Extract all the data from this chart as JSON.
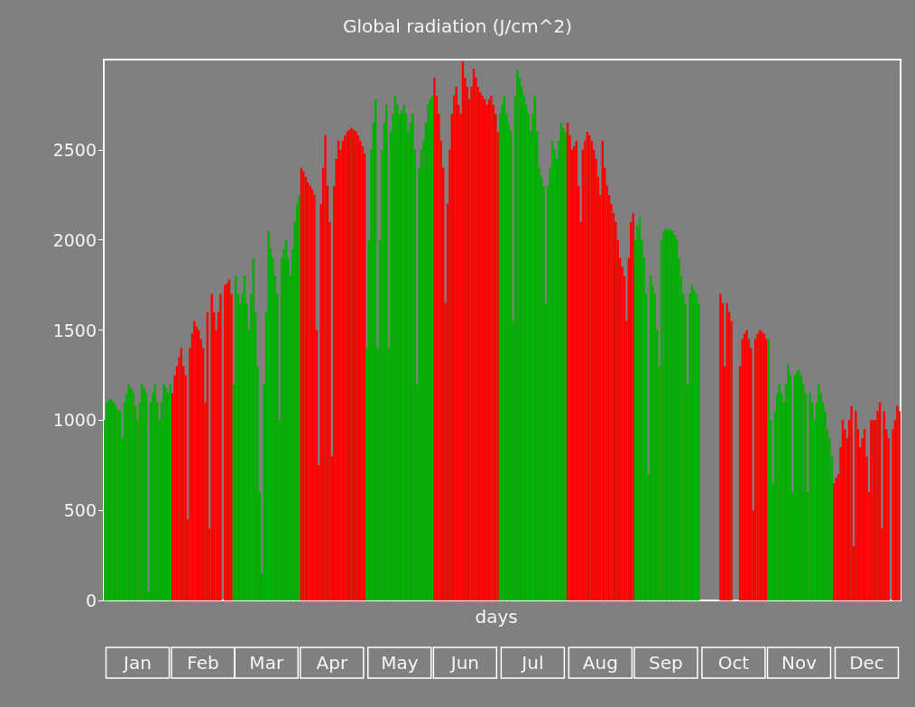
{
  "chart_data": {
    "type": "bar",
    "title": "Global radiation (J/cm^2)",
    "xlabel": "days",
    "categories": [
      null,
      null,
      null,
      null,
      null,
      null,
      null,
      null,
      null,
      null,
      null,
      null,
      null,
      null,
      null,
      "Jan",
      null,
      null,
      null,
      null,
      null,
      null,
      null,
      null,
      null,
      null,
      null,
      null,
      null,
      null,
      null,
      null,
      null,
      null,
      null,
      null,
      null,
      null,
      null,
      null,
      null,
      null,
      null,
      null,
      null,
      "Feb",
      null,
      null,
      null,
      null,
      null,
      null,
      null,
      null,
      null,
      null,
      null,
      null,
      null,
      null,
      null,
      null,
      null,
      null,
      null,
      null,
      null,
      null,
      null,
      null,
      null,
      null,
      null,
      null,
      "Mar",
      null,
      null,
      null,
      null,
      null,
      null,
      null,
      null,
      null,
      null,
      null,
      null,
      null,
      null,
      null,
      null,
      null,
      null,
      null,
      null,
      null,
      null,
      null,
      null,
      null,
      null,
      null,
      null,
      null,
      "Apr",
      null,
      null,
      null,
      null,
      null,
      null,
      null,
      null,
      null,
      null,
      null,
      null,
      null,
      null,
      null,
      null,
      null,
      null,
      null,
      null,
      null,
      null,
      null,
      null,
      null,
      null,
      null,
      null,
      null,
      null,
      "May",
      null,
      null,
      null,
      null,
      null,
      null,
      null,
      null,
      null,
      null,
      null,
      null,
      null,
      null,
      null,
      null,
      null,
      null,
      null,
      null,
      null,
      null,
      null,
      null,
      null,
      null,
      null,
      null,
      null,
      "Jun",
      null,
      null,
      null,
      null,
      null,
      null,
      null,
      null,
      null,
      null,
      null,
      null,
      null,
      null,
      null,
      null,
      null,
      null,
      null,
      null,
      null,
      null,
      null,
      null,
      null,
      null,
      null,
      null,
      null,
      null,
      "Jul",
      null,
      null,
      null,
      null,
      null,
      null,
      null,
      null,
      null,
      null,
      null,
      null,
      null,
      null,
      null,
      null,
      null,
      null,
      null,
      null,
      null,
      null,
      null,
      null,
      null,
      null,
      null,
      null,
      null,
      null,
      "Aug",
      null,
      null,
      null,
      null,
      null,
      null,
      null,
      null,
      null,
      null,
      null,
      null,
      null,
      null,
      null,
      null,
      null,
      null,
      null,
      null,
      null,
      null,
      null,
      null,
      null,
      null,
      null,
      null,
      null,
      "Sep",
      null,
      null,
      null,
      null,
      null,
      null,
      null,
      null,
      null,
      null,
      null,
      null,
      null,
      null,
      null,
      null,
      null,
      null,
      null,
      null,
      null,
      null,
      null,
      null,
      null,
      null,
      null,
      null,
      null,
      null,
      "Oct",
      null,
      null,
      null,
      null,
      null,
      null,
      null,
      null,
      null,
      null,
      null,
      null,
      null,
      null,
      null,
      null,
      null,
      null,
      null,
      null,
      null,
      null,
      null,
      null,
      null,
      null,
      null,
      null,
      null,
      "Nov",
      null,
      null,
      null,
      null,
      null,
      null,
      null,
      null,
      null,
      null,
      null,
      null,
      null,
      null,
      null,
      null,
      null,
      null,
      null,
      null,
      null,
      null,
      null,
      null,
      null,
      null,
      null,
      null,
      null,
      null,
      "Dec",
      null,
      null,
      null,
      null,
      null,
      null,
      null,
      null,
      null,
      null,
      null,
      null,
      null,
      null,
      null
    ],
    "values": [
      1000,
      1100,
      1110,
      1120,
      1100,
      1080,
      1060,
      1050,
      900,
      1100,
      1150,
      1200,
      1180,
      1150,
      1080,
      1000,
      1100,
      1200,
      1180,
      1150,
      50,
      1100,
      1150,
      1200,
      1100,
      1000,
      1100,
      1200,
      1180,
      1150,
      1200,
      1150,
      1250,
      1300,
      1350,
      1400,
      1300,
      1250,
      450,
      1400,
      1480,
      1550,
      1520,
      1500,
      1450,
      1400,
      1100,
      1600,
      400,
      1700,
      1600,
      1500,
      1600,
      1700,
      0,
      1750,
      1760,
      1780,
      1700,
      1200,
      1800,
      1700,
      1650,
      1700,
      1800,
      1650,
      1500,
      1700,
      1900,
      1600,
      1300,
      600,
      150,
      1200,
      1600,
      2050,
      1950,
      1900,
      1800,
      1700,
      1000,
      1900,
      1950,
      2000,
      1900,
      1800,
      1950,
      2100,
      2200,
      2250,
      2400,
      2380,
      2350,
      2320,
      2300,
      2280,
      2250,
      1500,
      750,
      2200,
      2400,
      2580,
      2300,
      2100,
      800,
      2300,
      2450,
      2550,
      2500,
      2550,
      2580,
      2600,
      2610,
      2620,
      2610,
      2600,
      2580,
      2550,
      2520,
      2480,
      1400,
      2000,
      2500,
      2650,
      2780,
      1400,
      2000,
      2500,
      2650,
      2750,
      1400,
      2600,
      2700,
      2800,
      2750,
      2700,
      2720,
      2750,
      2700,
      2600,
      2650,
      2700,
      2500,
      1200,
      2400,
      2500,
      2550,
      2650,
      2750,
      2780,
      2800,
      2900,
      2800,
      2700,
      2550,
      2400,
      1650,
      2200,
      2500,
      2700,
      2800,
      2850,
      2750,
      2700,
      2990,
      2900,
      2850,
      2780,
      2850,
      2950,
      2900,
      2850,
      2820,
      2800,
      2780,
      2750,
      2780,
      2800,
      2750,
      2700,
      2600,
      2700,
      2750,
      2800,
      2700,
      2650,
      2600,
      1550,
      2800,
      2940,
      2900,
      2850,
      2800,
      2750,
      2700,
      2600,
      2700,
      2800,
      2600,
      2400,
      2350,
      2300,
      1650,
      2300,
      2400,
      2550,
      2500,
      2450,
      2550,
      2650,
      2620,
      2600,
      2650,
      2580,
      2500,
      2520,
      2550,
      2300,
      2100,
      2500,
      2550,
      2600,
      2580,
      2550,
      2500,
      2450,
      2350,
      2250,
      2550,
      2400,
      2300,
      2250,
      2200,
      2150,
      2100,
      2000,
      1900,
      1850,
      1800,
      1550,
      1900,
      2100,
      2150,
      2000,
      2080,
      2130,
      2000,
      1900,
      1700,
      700,
      1800,
      1750,
      1700,
      1500,
      1300,
      2000,
      2050,
      2060,
      2060,
      2060,
      2050,
      2030,
      2000,
      1900,
      1800,
      1700,
      1650,
      1200,
      1700,
      1750,
      1720,
      1700,
      1650,
      0,
      0,
      0,
      0,
      0,
      0,
      0,
      0,
      0,
      1700,
      1650,
      1300,
      1650,
      1600,
      1550,
      0,
      0,
      0,
      1300,
      1450,
      1480,
      1500,
      1450,
      1400,
      500,
      1450,
      1480,
      1500,
      1490,
      1480,
      1450,
      1450,
      1000,
      650,
      1050,
      1150,
      1200,
      1150,
      1100,
      1200,
      1310,
      1250,
      600,
      1250,
      1270,
      1280,
      1250,
      1200,
      1150,
      600,
      1150,
      1100,
      1000,
      1100,
      1200,
      1150,
      1100,
      1050,
      950,
      900,
      800,
      650,
      680,
      700,
      850,
      1000,
      950,
      900,
      1000,
      1080,
      300,
      1050,
      950,
      850,
      900,
      950,
      800,
      600,
      1000,
      1000,
      1000,
      1050,
      1100,
      400,
      1050,
      950,
      900,
      0,
      950,
      1000,
      1080,
      1050
    ],
    "colors": [
      "#00b000",
      "#00b000",
      "#00b000",
      "#00b000",
      "#00b000",
      "#00b000",
      "#00b000",
      "#00b000",
      "#00b000",
      "#00b000",
      "#00b000",
      "#00b000",
      "#00b000",
      "#00b000",
      "#00b000",
      "#00b000",
      "#00b000",
      "#00b000",
      "#00b000",
      "#00b000",
      "#00b000",
      "#00b000",
      "#00b000",
      "#00b000",
      "#00b000",
      "#00b000",
      "#00b000",
      "#00b000",
      "#00b000",
      "#00b000",
      "#00b000",
      "#ff0000",
      "#ff0000",
      "#ff0000",
      "#ff0000",
      "#ff0000",
      "#ff0000",
      "#ff0000",
      "#ff0000",
      "#ff0000",
      "#ff0000",
      "#ff0000",
      "#ff0000",
      "#ff0000",
      "#ff0000",
      "#ff0000",
      "#ff0000",
      "#ff0000",
      "#ff0000",
      "#ff0000",
      "#ff0000",
      "#ff0000",
      "#ff0000",
      "#ff0000",
      "#ff0000",
      "#ff0000",
      "#ff0000",
      "#ff0000",
      "#ff0000",
      "#00b000",
      "#00b000",
      "#00b000",
      "#00b000",
      "#00b000",
      "#00b000",
      "#00b000",
      "#00b000",
      "#00b000",
      "#00b000",
      "#00b000",
      "#00b000",
      "#00b000",
      "#00b000",
      "#00b000",
      "#00b000",
      "#00b000",
      "#00b000",
      "#00b000",
      "#00b000",
      "#00b000",
      "#00b000",
      "#00b000",
      "#00b000",
      "#00b000",
      "#00b000",
      "#00b000",
      "#00b000",
      "#00b000",
      "#00b000",
      "#00b000",
      "#ff0000",
      "#ff0000",
      "#ff0000",
      "#ff0000",
      "#ff0000",
      "#ff0000",
      "#ff0000",
      "#ff0000",
      "#ff0000",
      "#ff0000",
      "#ff0000",
      "#ff0000",
      "#ff0000",
      "#ff0000",
      "#ff0000",
      "#ff0000",
      "#ff0000",
      "#ff0000",
      "#ff0000",
      "#ff0000",
      "#ff0000",
      "#ff0000",
      "#ff0000",
      "#ff0000",
      "#ff0000",
      "#ff0000",
      "#ff0000",
      "#ff0000",
      "#ff0000",
      "#ff0000",
      "#00b000",
      "#00b000",
      "#00b000",
      "#00b000",
      "#00b000",
      "#00b000",
      "#00b000",
      "#00b000",
      "#00b000",
      "#00b000",
      "#00b000",
      "#00b000",
      "#00b000",
      "#00b000",
      "#00b000",
      "#00b000",
      "#00b000",
      "#00b000",
      "#00b000",
      "#00b000",
      "#00b000",
      "#00b000",
      "#00b000",
      "#00b000",
      "#00b000",
      "#00b000",
      "#00b000",
      "#00b000",
      "#00b000",
      "#00b000",
      "#00b000",
      "#ff0000",
      "#ff0000",
      "#ff0000",
      "#ff0000",
      "#ff0000",
      "#ff0000",
      "#ff0000",
      "#ff0000",
      "#ff0000",
      "#ff0000",
      "#ff0000",
      "#ff0000",
      "#ff0000",
      "#ff0000",
      "#ff0000",
      "#ff0000",
      "#ff0000",
      "#ff0000",
      "#ff0000",
      "#ff0000",
      "#ff0000",
      "#ff0000",
      "#ff0000",
      "#ff0000",
      "#ff0000",
      "#ff0000",
      "#ff0000",
      "#ff0000",
      "#ff0000",
      "#ff0000",
      "#00b000",
      "#00b000",
      "#00b000",
      "#00b000",
      "#00b000",
      "#00b000",
      "#00b000",
      "#00b000",
      "#00b000",
      "#00b000",
      "#00b000",
      "#00b000",
      "#00b000",
      "#00b000",
      "#00b000",
      "#00b000",
      "#00b000",
      "#00b000",
      "#00b000",
      "#00b000",
      "#00b000",
      "#00b000",
      "#00b000",
      "#00b000",
      "#00b000",
      "#00b000",
      "#00b000",
      "#00b000",
      "#00b000",
      "#00b000",
      "#00b000",
      "#ff0000",
      "#ff0000",
      "#ff0000",
      "#ff0000",
      "#ff0000",
      "#ff0000",
      "#ff0000",
      "#ff0000",
      "#ff0000",
      "#ff0000",
      "#ff0000",
      "#ff0000",
      "#ff0000",
      "#ff0000",
      "#ff0000",
      "#ff0000",
      "#ff0000",
      "#ff0000",
      "#ff0000",
      "#ff0000",
      "#ff0000",
      "#ff0000",
      "#ff0000",
      "#ff0000",
      "#ff0000",
      "#ff0000",
      "#ff0000",
      "#ff0000",
      "#ff0000",
      "#ff0000",
      "#ff0000",
      "#00b000",
      "#00b000",
      "#00b000",
      "#00b000",
      "#00b000",
      "#00b000",
      "#00b000",
      "#00b000",
      "#00b000",
      "#00b000",
      "#00b000",
      "#00b000",
      "#00b000",
      "#00b000",
      "#00b000",
      "#00b000",
      "#00b000",
      "#00b000",
      "#00b000",
      "#00b000",
      "#00b000",
      "#00b000",
      "#00b000",
      "#00b000",
      "#00b000",
      "#00b000",
      "#00b000",
      "#00b000",
      "#00b000",
      "#00b000",
      "#ff0000",
      "#ff0000",
      "#ff0000",
      "#ff0000",
      "#ff0000",
      "#ff0000",
      "#ff0000",
      "#ff0000",
      "#ff0000",
      "#ff0000",
      "#ff0000",
      "#ff0000",
      "#ff0000",
      "#ff0000",
      "#ff0000",
      "#ff0000",
      "#ff0000",
      "#ff0000",
      "#ff0000",
      "#ff0000",
      "#ff0000",
      "#ff0000",
      "#ff0000",
      "#ff0000",
      "#ff0000",
      "#ff0000",
      "#ff0000",
      "#ff0000",
      "#ff0000",
      "#ff0000",
      "#ff0000",
      "#00b000",
      "#00b000",
      "#00b000",
      "#00b000",
      "#00b000",
      "#00b000",
      "#00b000",
      "#00b000",
      "#00b000",
      "#00b000",
      "#00b000",
      "#00b000",
      "#00b000",
      "#00b000",
      "#00b000",
      "#00b000",
      "#00b000",
      "#00b000",
      "#00b000",
      "#00b000",
      "#00b000",
      "#00b000",
      "#00b000",
      "#00b000",
      "#00b000",
      "#00b000",
      "#00b000",
      "#00b000",
      "#00b000",
      "#00b000",
      "#ff0000",
      "#ff0000",
      "#ff0000",
      "#ff0000",
      "#ff0000",
      "#ff0000",
      "#ff0000",
      "#ff0000",
      "#ff0000",
      "#ff0000",
      "#ff0000",
      "#ff0000",
      "#ff0000",
      "#ff0000",
      "#ff0000",
      "#ff0000",
      "#ff0000",
      "#ff0000",
      "#ff0000",
      "#ff0000",
      "#ff0000",
      "#ff0000",
      "#ff0000",
      "#ff0000",
      "#ff0000",
      "#ff0000",
      "#ff0000",
      "#ff0000",
      "#ff0000",
      "#ff0000",
      "#ff0000"
    ],
    "ylim": [
      0,
      3000
    ],
    "yticks": [
      0,
      500,
      1000,
      1500,
      2000,
      2500
    ],
    "grid": false
  }
}
